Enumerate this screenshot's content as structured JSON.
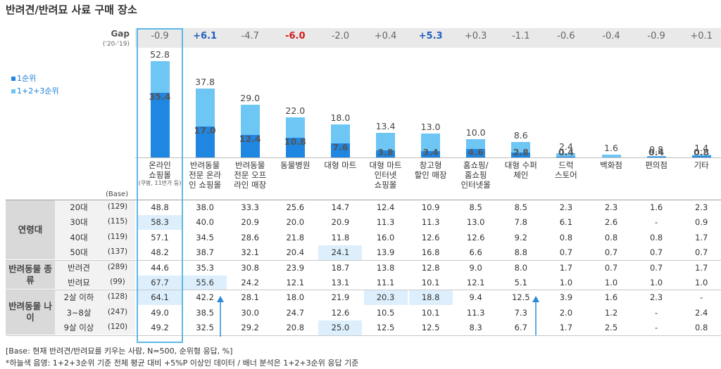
{
  "title": "반려견/반려묘 사료 구매 장소",
  "gap_label": "Gap",
  "gap_sub": "('20-'19)",
  "legend": [
    {
      "label": "1순위",
      "color": "#1f86e2"
    },
    {
      "label": "1+2+3순위",
      "color": "#6ec6f5"
    }
  ],
  "chart_data": {
    "type": "bar",
    "title": "반려견/반려묘 사료 구매 장소",
    "categories": [
      "온라인 쇼핑몰",
      "반려동물 전문 온라인 쇼핑몰",
      "반려동물 전문 오프라인 매장",
      "동물병원",
      "대형 마트",
      "대형 마트 인터넷 쇼핑몰",
      "창고형 할인 매장",
      "홈쇼핑/홈쇼핑 인터넷몰",
      "대형 수퍼 체인",
      "드럭 스토어",
      "백화점",
      "편의점",
      "기타"
    ],
    "category_lines": [
      [
        "온라인",
        "쇼핑몰"
      ],
      [
        "반려동물",
        "전문 온라",
        "인 쇼핑몰"
      ],
      [
        "반려동물",
        "전문 오프",
        "라인 매장"
      ],
      [
        "동물병원"
      ],
      [
        "대형 마트"
      ],
      [
        "대형 마트",
        "인터넷",
        "쇼핑몰"
      ],
      [
        "창고형",
        "할인 매장"
      ],
      [
        "홈쇼핑/",
        "홈쇼핑",
        "인터넷몰"
      ],
      [
        "대형 수퍼",
        "체인"
      ],
      [
        "드럭",
        "스토어"
      ],
      [
        "백화점"
      ],
      [
        "편의점"
      ],
      [
        "기타"
      ]
    ],
    "category_note": "(쿠팡, 11번가 등)",
    "series": [
      {
        "name": "1+2+3순위",
        "values": [
          52.8,
          37.8,
          29.0,
          22.0,
          18.0,
          13.4,
          13.0,
          10.0,
          8.6,
          2.4,
          1.6,
          0.8,
          1.4
        ]
      },
      {
        "name": "1순위",
        "values": [
          35.4,
          17.0,
          12.4,
          10.8,
          7.6,
          3.8,
          3.4,
          4.6,
          2.8,
          0.4,
          null,
          0.4,
          0.8
        ]
      }
    ],
    "gap": [
      "-0.9",
      "+6.1",
      "-4.7",
      "-6.0",
      "-2.0",
      "+0.4",
      "+5.3",
      "+0.3",
      "-1.1",
      "-0.6",
      "-0.4",
      "-0.9",
      "+0.1"
    ],
    "gap_emphasis": [
      "",
      "up",
      "",
      "down",
      "",
      "",
      "up",
      "",
      "",
      "",
      "",
      "",
      ""
    ],
    "ylim": [
      0,
      60
    ]
  },
  "table": {
    "base_label": "(Base)",
    "groups": [
      {
        "label": "연령대",
        "rows": [
          {
            "label": "20대",
            "base": "(129)",
            "values": [
              "48.8",
              "38.0",
              "33.3",
              "25.6",
              "14.7",
              "12.4",
              "10.9",
              "8.5",
              "8.5",
              "2.3",
              "2.3",
              "1.6",
              "2.3"
            ],
            "hl": []
          },
          {
            "label": "30대",
            "base": "(115)",
            "values": [
              "58.3",
              "40.0",
              "20.9",
              "20.0",
              "20.9",
              "11.3",
              "11.3",
              "13.0",
              "7.8",
              "6.1",
              "2.6",
              "-",
              "0.9"
            ],
            "hl": [
              0
            ]
          },
          {
            "label": "40대",
            "base": "(119)",
            "values": [
              "57.1",
              "34.5",
              "28.6",
              "21.8",
              "11.8",
              "16.0",
              "12.6",
              "12.6",
              "9.2",
              "0.8",
              "0.8",
              "0.8",
              "1.7"
            ],
            "hl": []
          },
          {
            "label": "50대",
            "base": "(137)",
            "values": [
              "48.2",
              "38.7",
              "32.1",
              "20.4",
              "24.1",
              "13.9",
              "16.8",
              "6.6",
              "8.8",
              "0.7",
              "0.7",
              "0.7",
              "0.7"
            ],
            "hl": [
              4
            ]
          }
        ]
      },
      {
        "label": "반려동물 종류",
        "rows": [
          {
            "label": "반려견",
            "base": "(289)",
            "values": [
              "44.6",
              "35.3",
              "30.8",
              "23.9",
              "18.7",
              "13.8",
              "12.8",
              "9.0",
              "8.0",
              "1.7",
              "0.7",
              "0.7",
              "1.7"
            ],
            "hl": []
          },
          {
            "label": "반려묘",
            "base": "(99)",
            "values": [
              "67.7",
              "55.6",
              "24.2",
              "12.1",
              "13.1",
              "11.1",
              "10.1",
              "12.1",
              "5.1",
              "1.0",
              "1.0",
              "1.0",
              "1.0"
            ],
            "hl": [
              0,
              1
            ]
          }
        ]
      },
      {
        "label": "반려동물 나이",
        "rows": [
          {
            "label": "2살 이하",
            "base": "(128)",
            "values": [
              "64.1",
              "42.2",
              "28.1",
              "18.0",
              "21.9",
              "20.3",
              "18.8",
              "9.4",
              "12.5",
              "3.9",
              "1.6",
              "2.3",
              "-"
            ],
            "hl": [
              0,
              5,
              6
            ]
          },
          {
            "label": "3~8살",
            "base": "(247)",
            "values": [
              "49.0",
              "38.5",
              "30.0",
              "24.7",
              "12.6",
              "10.5",
              "10.1",
              "11.3",
              "7.3",
              "2.0",
              "1.2",
              "-",
              "2.4"
            ],
            "hl": []
          },
          {
            "label": "9살 이상",
            "base": "(120)",
            "values": [
              "49.2",
              "32.5",
              "29.2",
              "20.8",
              "25.0",
              "12.5",
              "12.5",
              "8.3",
              "6.7",
              "1.7",
              "2.5",
              "-",
              "0.8"
            ],
            "hl": [
              4
            ]
          }
        ]
      }
    ]
  },
  "footnote1": "[Base: 현재 반려견/반려묘를 키우는 사람, N=500, 순위형 응답, %]",
  "footnote2": "*하늘색 음영: 1+2+3순위 기준 전체 평균 대비 +5%P 이상인 데이터 / 배너 분석은 1+2+3순위 응답 기준"
}
